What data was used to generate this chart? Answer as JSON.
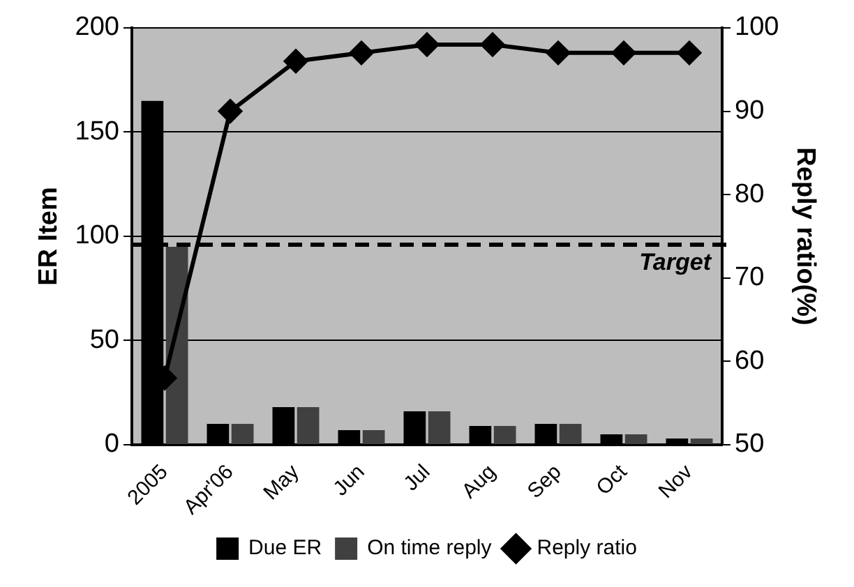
{
  "chart_data": {
    "type": "bar",
    "ylabel": "ER Item",
    "y2label": "Reply ratio(%)",
    "categories": [
      "2005",
      "Apr'06",
      "May",
      "Jun",
      "Jul",
      "Aug",
      "Sep",
      "Oct",
      "Nov"
    ],
    "series": [
      {
        "name": "Due ER",
        "color": "#000000",
        "values": [
          165,
          10,
          18,
          7,
          16,
          9,
          10,
          5,
          3
        ]
      },
      {
        "name": "On time reply",
        "color": "#404040",
        "values": [
          95,
          10,
          18,
          7,
          16,
          9,
          10,
          5,
          3
        ]
      },
      {
        "name": "Reply ratio",
        "type": "line",
        "axis": "y2",
        "color": "#000000",
        "marker": "diamond",
        "values": [
          58,
          90,
          96,
          97,
          98,
          98,
          97,
          97,
          97
        ]
      }
    ],
    "ylim": [
      0,
      200
    ],
    "yticks": [
      0,
      50,
      100,
      150,
      200
    ],
    "y2lim": [
      50,
      100
    ],
    "y2ticks": [
      50,
      60,
      70,
      80,
      90,
      100
    ],
    "ref_lines": [
      {
        "axis": "y2",
        "value": 74,
        "label": "Target",
        "line_style": "dashed",
        "color": "#000000"
      }
    ],
    "grid": "y",
    "legend": "bottom"
  }
}
